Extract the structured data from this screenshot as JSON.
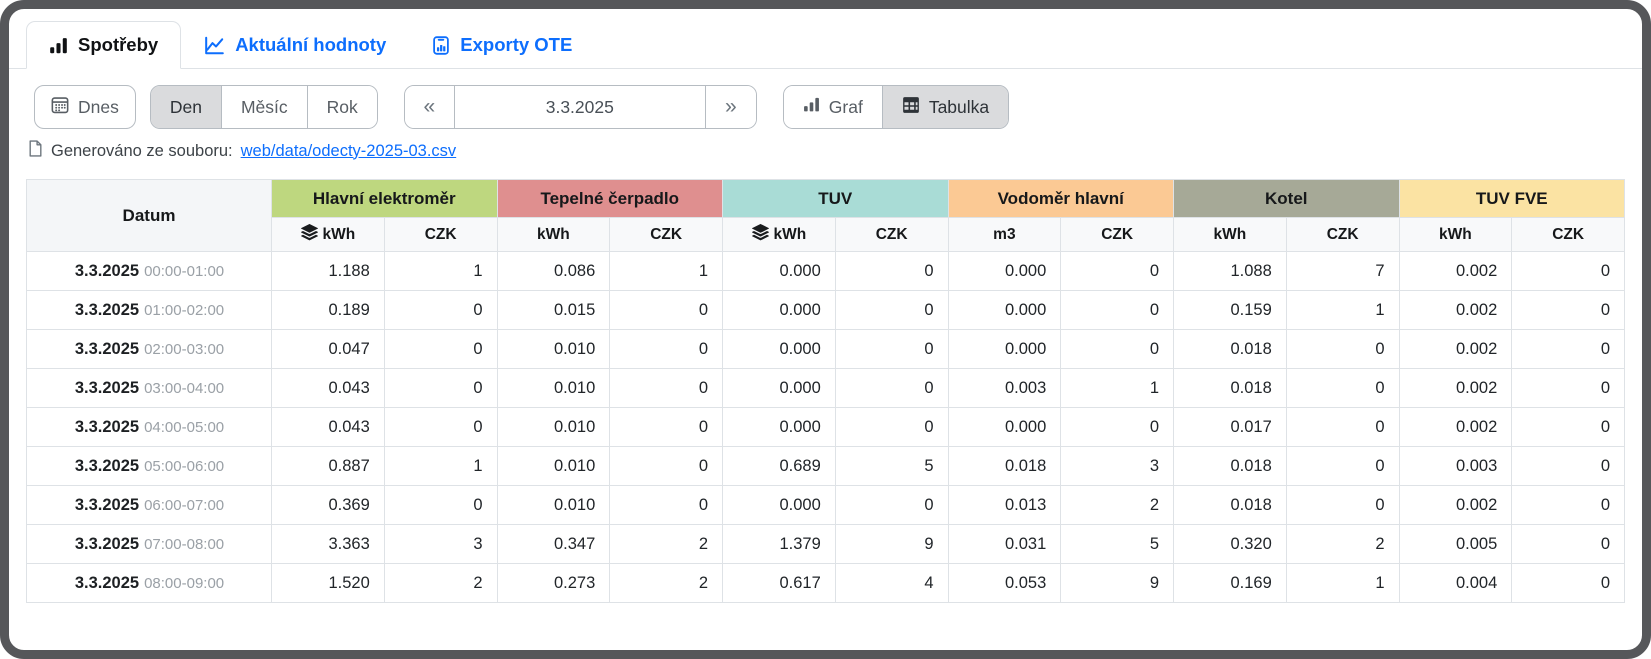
{
  "tabs": [
    {
      "label": "Spotřeby",
      "icon": "bar-chart-icon",
      "active": true
    },
    {
      "label": "Aktuální hodnoty",
      "icon": "line-chart-icon",
      "active": false
    },
    {
      "label": "Exporty OTE",
      "icon": "export-chart-icon",
      "active": false
    }
  ],
  "toolbar": {
    "today_label": "Dnes",
    "period_options": [
      {
        "label": "Den",
        "active": true
      },
      {
        "label": "Měsíc",
        "active": false
      },
      {
        "label": "Rok",
        "active": false
      }
    ],
    "prev_label": "«",
    "date_value": "3.3.2025",
    "next_label": "»",
    "view_options": [
      {
        "label": "Graf",
        "active": false
      },
      {
        "label": "Tabulka",
        "active": true
      }
    ]
  },
  "generated": {
    "label": "Generováno ze souboru:",
    "file_link": "web/data/odecty-2025-03.csv"
  },
  "table": {
    "datum_header": "Datum",
    "groups": [
      {
        "label": "Hlavní elektroměr",
        "color": "#bed77f",
        "columns": [
          {
            "unit": "kWh",
            "stack_icon": true
          },
          {
            "unit": "CZK",
            "stack_icon": false
          }
        ]
      },
      {
        "label": "Tepelné čerpadlo",
        "color": "#df8f8f",
        "columns": [
          {
            "unit": "kWh",
            "stack_icon": false
          },
          {
            "unit": "CZK",
            "stack_icon": false
          }
        ]
      },
      {
        "label": "TUV",
        "color": "#a9dcd6",
        "columns": [
          {
            "unit": "kWh",
            "stack_icon": true
          },
          {
            "unit": "CZK",
            "stack_icon": false
          }
        ]
      },
      {
        "label": "Vodoměr hlavní",
        "color": "#fbc994",
        "columns": [
          {
            "unit": "m3",
            "stack_icon": false
          },
          {
            "unit": "CZK",
            "stack_icon": false
          }
        ]
      },
      {
        "label": "Kotel",
        "color": "#a6a997",
        "columns": [
          {
            "unit": "kWh",
            "stack_icon": false
          },
          {
            "unit": "CZK",
            "stack_icon": false
          }
        ]
      },
      {
        "label": "TUV FVE",
        "color": "#fbe3a3",
        "columns": [
          {
            "unit": "kWh",
            "stack_icon": false
          },
          {
            "unit": "CZK",
            "stack_icon": false
          }
        ]
      }
    ],
    "rows": [
      {
        "date": "3.3.2025",
        "time": "00:00-01:00",
        "values": [
          "1.188",
          "1",
          "0.086",
          "1",
          "0.000",
          "0",
          "0.000",
          "0",
          "1.088",
          "7",
          "0.002",
          "0"
        ]
      },
      {
        "date": "3.3.2025",
        "time": "01:00-02:00",
        "values": [
          "0.189",
          "0",
          "0.015",
          "0",
          "0.000",
          "0",
          "0.000",
          "0",
          "0.159",
          "1",
          "0.002",
          "0"
        ]
      },
      {
        "date": "3.3.2025",
        "time": "02:00-03:00",
        "values": [
          "0.047",
          "0",
          "0.010",
          "0",
          "0.000",
          "0",
          "0.000",
          "0",
          "0.018",
          "0",
          "0.002",
          "0"
        ]
      },
      {
        "date": "3.3.2025",
        "time": "03:00-04:00",
        "values": [
          "0.043",
          "0",
          "0.010",
          "0",
          "0.000",
          "0",
          "0.003",
          "1",
          "0.018",
          "0",
          "0.002",
          "0"
        ]
      },
      {
        "date": "3.3.2025",
        "time": "04:00-05:00",
        "values": [
          "0.043",
          "0",
          "0.010",
          "0",
          "0.000",
          "0",
          "0.000",
          "0",
          "0.017",
          "0",
          "0.002",
          "0"
        ]
      },
      {
        "date": "3.3.2025",
        "time": "05:00-06:00",
        "values": [
          "0.887",
          "1",
          "0.010",
          "0",
          "0.689",
          "5",
          "0.018",
          "3",
          "0.018",
          "0",
          "0.003",
          "0"
        ]
      },
      {
        "date": "3.3.2025",
        "time": "06:00-07:00",
        "values": [
          "0.369",
          "0",
          "0.010",
          "0",
          "0.000",
          "0",
          "0.013",
          "2",
          "0.018",
          "0",
          "0.002",
          "0"
        ]
      },
      {
        "date": "3.3.2025",
        "time": "07:00-08:00",
        "values": [
          "3.363",
          "3",
          "0.347",
          "2",
          "1.379",
          "9",
          "0.031",
          "5",
          "0.320",
          "2",
          "0.005",
          "0"
        ]
      },
      {
        "date": "3.3.2025",
        "time": "08:00-09:00",
        "values": [
          "1.520",
          "2",
          "0.273",
          "2",
          "0.617",
          "4",
          "0.053",
          "9",
          "0.169",
          "1",
          "0.004",
          "0"
        ]
      }
    ]
  }
}
